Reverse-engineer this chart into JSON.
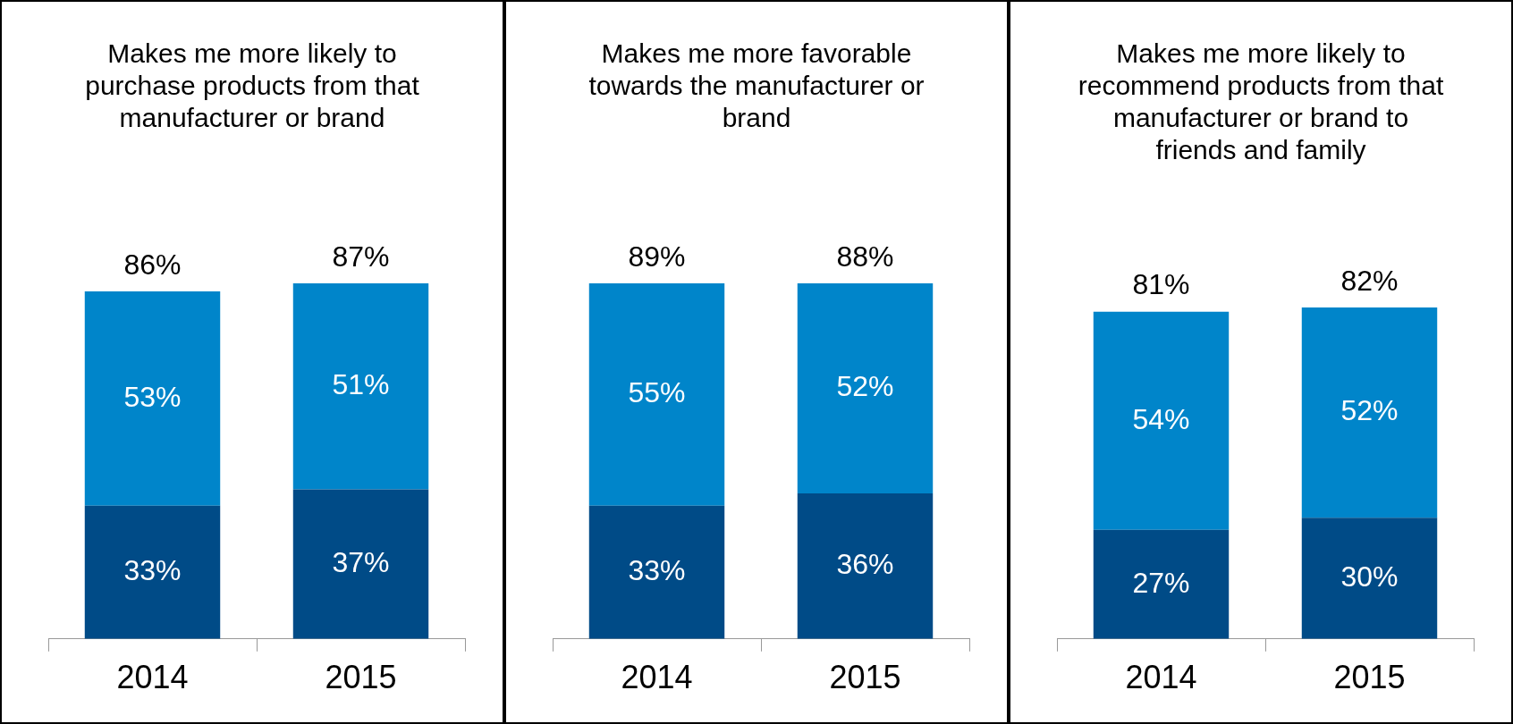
{
  "chart_data": [
    {
      "type": "bar",
      "title": "Makes me more likely to purchase products from that manufacturer or brand",
      "categories": [
        "2014",
        "2015"
      ],
      "stacked": true,
      "totals": [
        "86%",
        "87%"
      ],
      "series": [
        {
          "color": "#004b87",
          "values": [
            33,
            37
          ],
          "value_labels": [
            "33%",
            "37%"
          ]
        },
        {
          "color": "#0085ca",
          "values": [
            53,
            51
          ],
          "value_labels": [
            "53%",
            "51%"
          ]
        }
      ]
    },
    {
      "type": "bar",
      "title": "Makes me more favorable towards the manufacturer or brand",
      "categories": [
        "2014",
        "2015"
      ],
      "stacked": true,
      "totals": [
        "89%",
        "88%"
      ],
      "series": [
        {
          "color": "#004b87",
          "values": [
            33,
            36
          ],
          "value_labels": [
            "33%",
            "36%"
          ]
        },
        {
          "color": "#0085ca",
          "values": [
            55,
            52
          ],
          "value_labels": [
            "55%",
            "52%"
          ]
        }
      ]
    },
    {
      "type": "bar",
      "title": "Makes me more likely to recommend products from that manufacturer or brand to friends and family",
      "categories": [
        "2014",
        "2015"
      ],
      "stacked": true,
      "totals": [
        "81%",
        "82%"
      ],
      "series": [
        {
          "color": "#004b87",
          "values": [
            27,
            30
          ],
          "value_labels": [
            "27%",
            "30%"
          ]
        },
        {
          "color": "#0085ca",
          "values": [
            54,
            52
          ],
          "value_labels": [
            "54%",
            "52%"
          ]
        }
      ]
    }
  ]
}
